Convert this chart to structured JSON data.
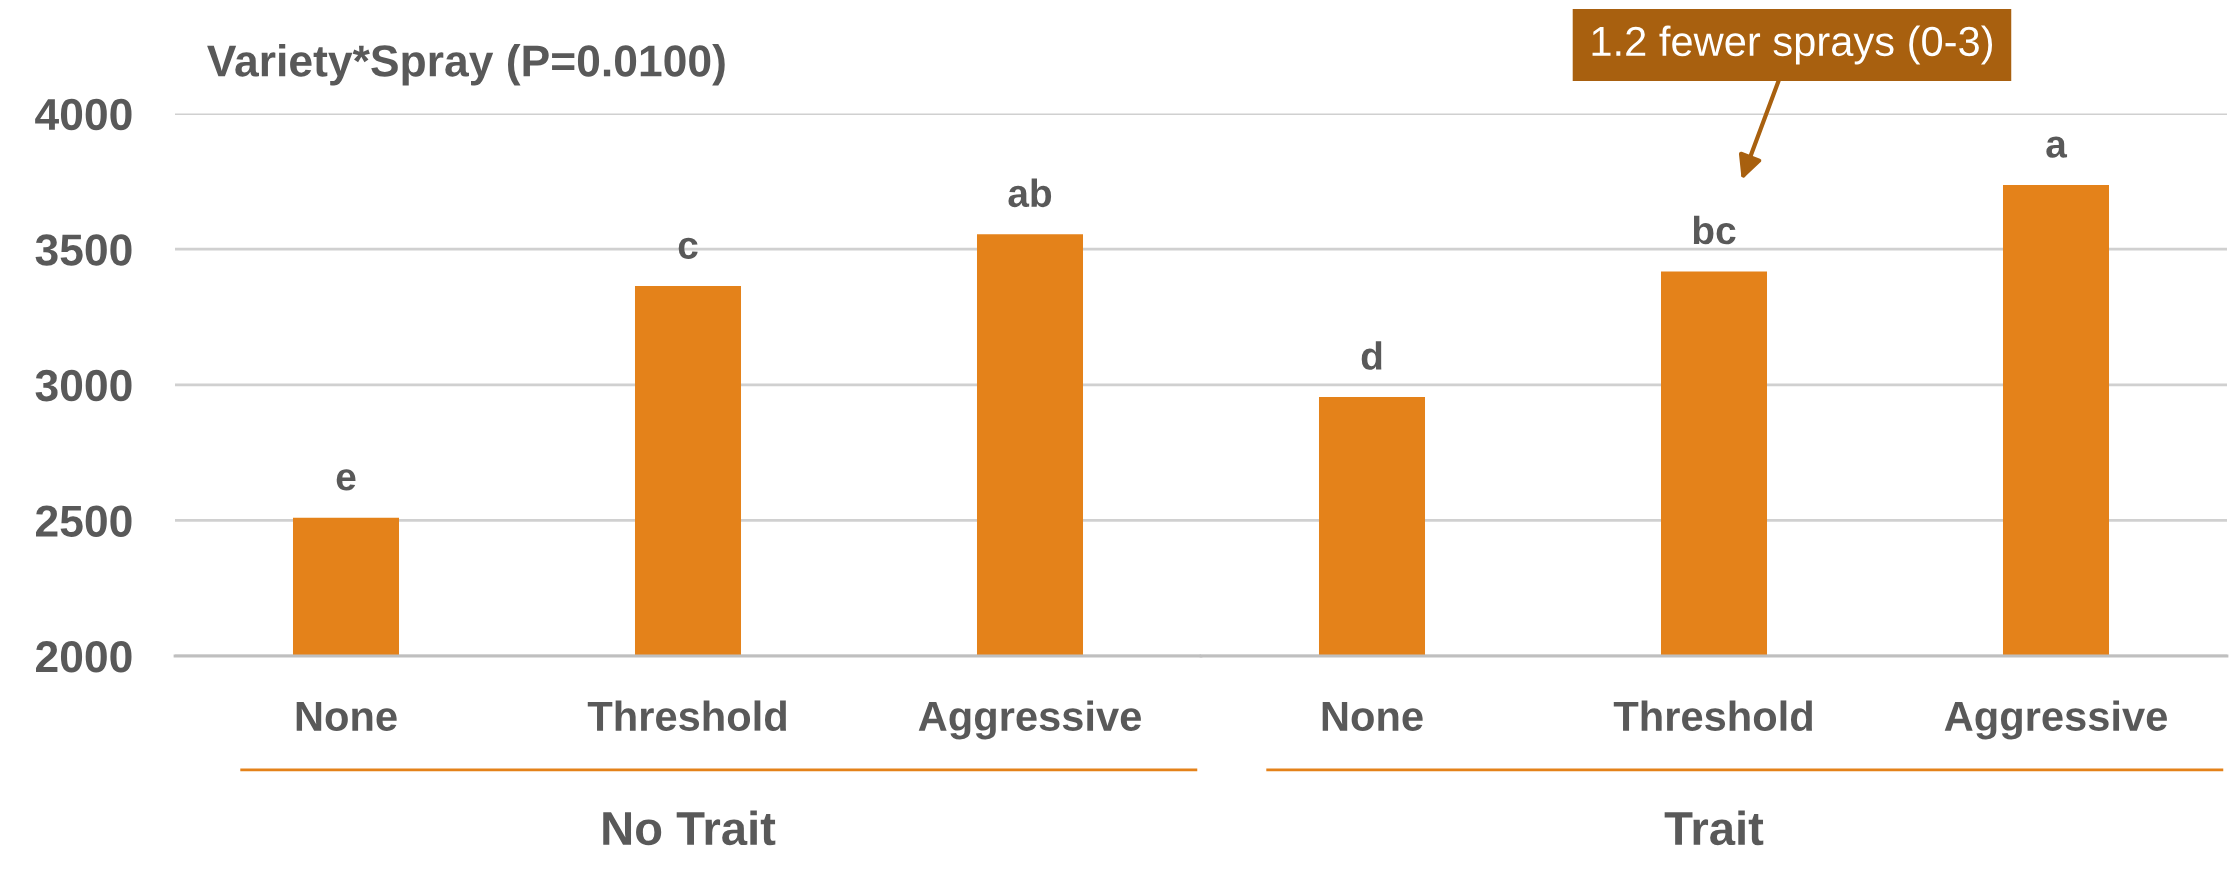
{
  "chart_data": [
    {
      "type": "bar",
      "title": "Variety*Spray (P=0.0100)",
      "xlabel": "No Trait",
      "categories": [
        "None",
        "Threshold",
        "Aggressive"
      ],
      "values": [
        2510,
        3364,
        3555
      ],
      "value_labels": [
        "e",
        "c",
        "ab"
      ],
      "color": "#e4821a",
      "ylim": [
        2000,
        4000
      ],
      "yticks": [
        2000,
        2500,
        3000,
        3500,
        4000
      ],
      "grid": "y"
    },
    {
      "type": "bar",
      "xlabel": "Trait",
      "categories": [
        "None",
        "Threshold",
        "Aggressive"
      ],
      "values": [
        2955,
        3418,
        3737
      ],
      "value_labels": [
        "d",
        "bc",
        "a"
      ],
      "color": "#e4821a",
      "ylim": [
        2000,
        4000
      ],
      "yticks": [
        2000,
        2500,
        3000,
        3500,
        4000
      ],
      "grid": "y",
      "tick_labels": "x",
      "annotations": [
        "1.2 fewer sprays (0-3)"
      ]
    }
  ]
}
